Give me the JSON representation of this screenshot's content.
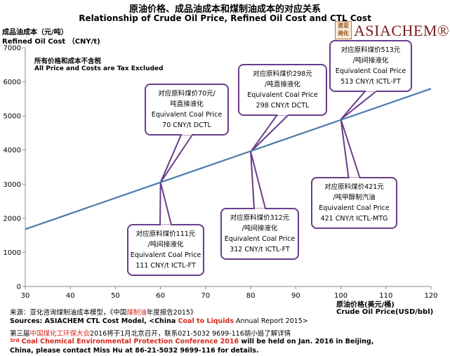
{
  "chart_data": {
    "type": "line",
    "title": "原油价格、成品油成本和煤制油成本的对应关系",
    "subtitle": "Relationship of Crude Oil Price, Refined Oil Cost and CTL Cost",
    "ylabel_cn": "成品油成本（元/吨）",
    "ylabel_en": "Refined Oil Cost （CNY/t)",
    "xlabel_cn": "原油价格(美元/桶)",
    "xlabel_en": "Crude Oil Price(USD/bbl)",
    "xlim": [
      30,
      120
    ],
    "ylim": [
      0,
      7000
    ],
    "x_ticks": [
      30,
      40,
      50,
      60,
      70,
      80,
      90,
      100,
      110,
      120
    ],
    "y_ticks": [
      0,
      1000,
      2000,
      3000,
      4000,
      5000,
      6000,
      7000
    ],
    "grid": false,
    "series": [
      {
        "x": [
          30,
          120
        ],
        "y": [
          1680,
          5800
        ],
        "color": "#4a7bab"
      }
    ],
    "note_cn": "所有价格和成本不含税",
    "note_en": "All Price and Costs are Tax Excluded",
    "annotations": [
      {
        "point": [
          60,
          3050
        ],
        "lines": [
          "对应原料煤价70元/",
          "吨直接液化",
          "Equivalent Coal Price",
          "70 CNY/t DCTL"
        ],
        "box": "above"
      },
      {
        "point": [
          60,
          3050
        ],
        "lines": [
          "对应原料煤价111元",
          "/吨间接液化",
          "Equivalent Coal Price",
          "111 CNY/t ICTL-FT"
        ],
        "box": "below"
      },
      {
        "point": [
          80,
          3950
        ],
        "lines": [
          "对应原料煤价298元",
          "/吨直接液化",
          "Equivalent Coal Price",
          "298 CNY/t DCTL"
        ],
        "box": "above"
      },
      {
        "point": [
          80,
          3950
        ],
        "lines": [
          "对应原料煤价312元",
          "/吨间接液化",
          "Equivalent Coal Price",
          "312 CNY/t ICTL-FT"
        ],
        "box": "below"
      },
      {
        "point": [
          100,
          4900
        ],
        "lines": [
          "对应原料煤价513元",
          "/吨间接液化",
          "Equivalent Coal Price",
          "513 CNY/t ICTL-FT"
        ],
        "box": "above"
      },
      {
        "point": [
          100,
          4900
        ],
        "lines": [
          "对应原料煤价421元",
          "/吨甲醇制汽油",
          "Equivalent Coal Price",
          "421 CNY/t ICTL-MTG"
        ],
        "box": "below"
      }
    ],
    "annotation_color": "#6a3d8a"
  },
  "logo": {
    "seal": "咨亚询化",
    "name": "ASIACHEM®"
  },
  "sources": {
    "line1_a": "来源：亚化咨询煤制油成本模型，《中国",
    "line1_red": "煤制油",
    "line1_b": "年度报告2015》",
    "line2_a": "Sources: ASIACHEM CTL Cost Model, <China ",
    "line2_red": "Coal to Liquids",
    "line2_b": " Annual Report 2015>",
    "line3_a": "第三届",
    "line3_red": "中国煤化工环保大会",
    "line3_b": "2016将于1月北京召开，联系021-5032 9699-116胡小姐了解详情",
    "line4_sup": "3",
    "line4_red1": "rd",
    "line4_red": " Coal Chemical Environmental Protection Conference 2016",
    "line4_b": " will be held on Jan. 2016 in Beijing,",
    "line5": "China, please contact Miss Hu at 86-21-5032 9699-116 for details."
  }
}
